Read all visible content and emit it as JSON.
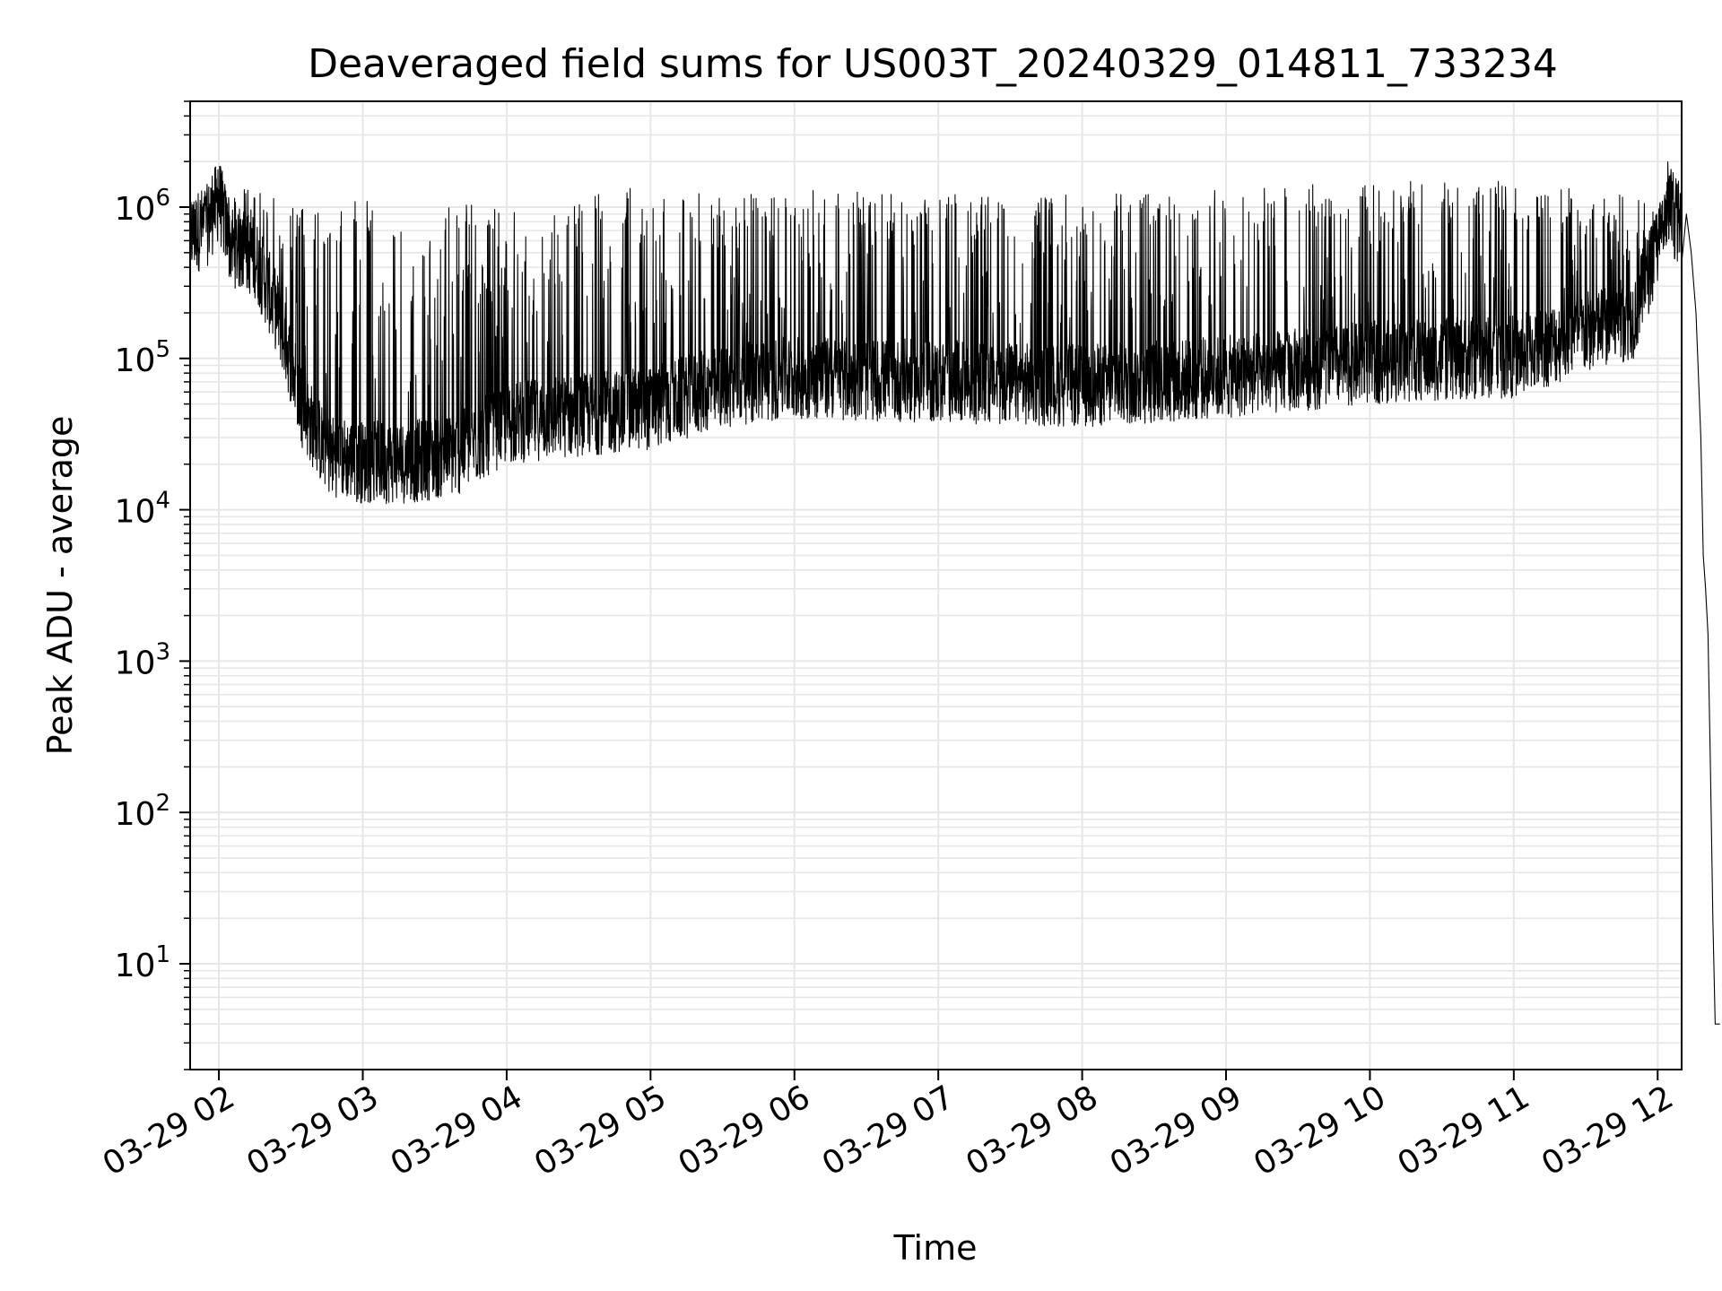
{
  "chart_data": {
    "type": "line",
    "title": "Deaveraged field sums for US003T_20240329_014811_733234",
    "xlabel": "Time",
    "ylabel": "Peak ADU - average",
    "yscale": "log",
    "ylim": [
      2,
      5000000
    ],
    "xlim": [
      "2024-03-29T01:48",
      "2024-03-29T12:10"
    ],
    "grid": true,
    "line_color": "#000000",
    "grid_color": "#e6e6e6",
    "x_ticks": [
      {
        "value": "2024-03-29T02:00",
        "label": "03-29 02"
      },
      {
        "value": "2024-03-29T03:00",
        "label": "03-29 03"
      },
      {
        "value": "2024-03-29T04:00",
        "label": "03-29 04"
      },
      {
        "value": "2024-03-29T05:00",
        "label": "03-29 05"
      },
      {
        "value": "2024-03-29T06:00",
        "label": "03-29 06"
      },
      {
        "value": "2024-03-29T07:00",
        "label": "03-29 07"
      },
      {
        "value": "2024-03-29T08:00",
        "label": "03-29 08"
      },
      {
        "value": "2024-03-29T09:00",
        "label": "03-29 09"
      },
      {
        "value": "2024-03-29T10:00",
        "label": "03-29 10"
      },
      {
        "value": "2024-03-29T11:00",
        "label": "03-29 11"
      },
      {
        "value": "2024-03-29T12:00",
        "label": "03-29 12"
      }
    ],
    "y_ticks": [
      {
        "value": 10,
        "base": "10",
        "exp": "1"
      },
      {
        "value": 100,
        "base": "10",
        "exp": "2"
      },
      {
        "value": 1000,
        "base": "10",
        "exp": "3"
      },
      {
        "value": 10000,
        "base": "10",
        "exp": "4"
      },
      {
        "value": 100000,
        "base": "10",
        "exp": "5"
      },
      {
        "value": 1000000,
        "base": "10",
        "exp": "6"
      }
    ],
    "series": [
      {
        "envelope": [
          {
            "t": "2024-03-29T01:48",
            "base": 700000,
            "peak": 1300000
          },
          {
            "t": "2024-03-29T01:55",
            "base": 800000,
            "peak": 1500000
          },
          {
            "t": "2024-03-29T02:00",
            "base": 1200000,
            "peak": 2600000
          },
          {
            "t": "2024-03-29T02:05",
            "base": 600000,
            "peak": 1200000
          },
          {
            "t": "2024-03-29T02:15",
            "base": 500000,
            "peak": 1600000
          },
          {
            "t": "2024-03-29T02:25",
            "base": 200000,
            "peak": 1300000
          },
          {
            "t": "2024-03-29T02:35",
            "base": 50000,
            "peak": 1000000
          },
          {
            "t": "2024-03-29T02:45",
            "base": 25000,
            "peak": 900000
          },
          {
            "t": "2024-03-29T03:00",
            "base": 22000,
            "peak": 1200000
          },
          {
            "t": "2024-03-29T03:20",
            "base": 22000,
            "peak": 600000
          },
          {
            "t": "2024-03-29T03:40",
            "base": 25000,
            "peak": 1200000
          },
          {
            "t": "2024-03-29T04:00",
            "base": 40000,
            "peak": 900000
          },
          {
            "t": "2024-03-29T04:30",
            "base": 45000,
            "peak": 1200000
          },
          {
            "t": "2024-03-29T05:00",
            "base": 50000,
            "peak": 1400000
          },
          {
            "t": "2024-03-29T05:30",
            "base": 70000,
            "peak": 1200000
          },
          {
            "t": "2024-03-29T06:00",
            "base": 80000,
            "peak": 1300000
          },
          {
            "t": "2024-03-29T07:00",
            "base": 75000,
            "peak": 1200000
          },
          {
            "t": "2024-03-29T08:00",
            "base": 70000,
            "peak": 1300000
          },
          {
            "t": "2024-03-29T09:00",
            "base": 80000,
            "peak": 1300000
          },
          {
            "t": "2024-03-29T10:00",
            "base": 100000,
            "peak": 1500000
          },
          {
            "t": "2024-03-29T11:00",
            "base": 110000,
            "peak": 1500000
          },
          {
            "t": "2024-03-29T11:50",
            "base": 200000,
            "peak": 1300000
          },
          {
            "t": "2024-03-29T12:00",
            "base": 600000,
            "peak": 900000
          },
          {
            "t": "2024-03-29T12:05",
            "base": 1000000,
            "peak": 2400000
          },
          {
            "t": "2024-03-29T12:10",
            "base": 800000,
            "peak": 1000000
          }
        ],
        "tail": [
          {
            "t": "2024-03-29T12:12",
            "v": 900000
          },
          {
            "t": "2024-03-29T12:14",
            "v": 500000
          },
          {
            "t": "2024-03-29T12:16",
            "v": 200000
          },
          {
            "t": "2024-03-29T12:18",
            "v": 30000
          },
          {
            "t": "2024-03-29T12:19",
            "v": 5000
          },
          {
            "t": "2024-03-29T12:20",
            "v": 3000
          },
          {
            "t": "2024-03-29T12:21",
            "v": 1500
          },
          {
            "t": "2024-03-29T12:22",
            "v": 200
          },
          {
            "t": "2024-03-29T12:23",
            "v": 20
          },
          {
            "t": "2024-03-29T12:24",
            "v": 4
          },
          {
            "t": "2024-03-29T12:26",
            "v": 4
          }
        ]
      }
    ]
  }
}
